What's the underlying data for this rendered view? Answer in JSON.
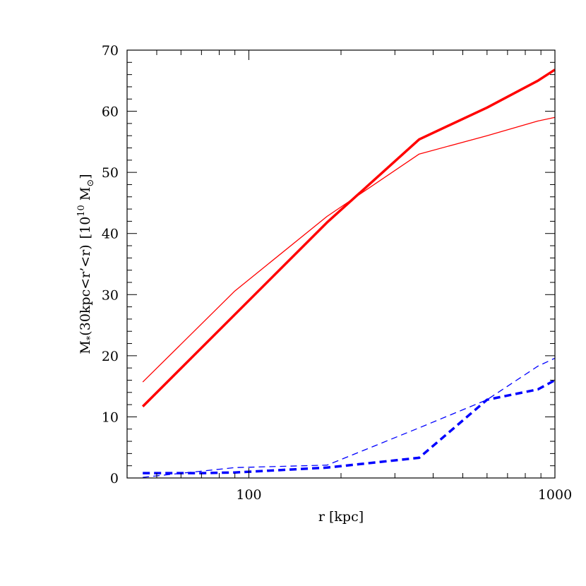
{
  "chart_data": {
    "type": "line",
    "title": "",
    "xlabel": "r [kpc]",
    "ylabel": {
      "base": "M",
      "sub": "*",
      "paren": "(30kpc<r’<r)",
      "unit_pre": "[10",
      "unit_sup": "10",
      "unit_post": " M",
      "unit_sub": "⊙",
      "unit_close": "]"
    },
    "xscale": "log",
    "xlim": [
      40,
      1000
    ],
    "ylim": [
      0,
      70
    ],
    "x_ticks": [
      100,
      1000
    ],
    "x_tick_labels": [
      "100",
      "1000"
    ],
    "y_ticks": [
      0,
      10,
      20,
      30,
      40,
      50,
      60,
      70
    ],
    "y_tick_labels": [
      "0",
      "10",
      "20",
      "30",
      "40",
      "50",
      "60",
      "70"
    ],
    "grid": false,
    "series": [
      {
        "color": "#ff0000",
        "style": "solid",
        "weight": "thick",
        "x": [
          45,
          180,
          360,
          600,
          880,
          1000
        ],
        "y": [
          11.7,
          41.8,
          55.4,
          60.6,
          65.0,
          66.8
        ]
      },
      {
        "color": "#ff0000",
        "style": "solid",
        "weight": "thin",
        "x": [
          45,
          90,
          180,
          360,
          600,
          880,
          1000
        ],
        "y": [
          15.7,
          30.6,
          42.8,
          53.0,
          56.0,
          58.4,
          59.0
        ]
      },
      {
        "color": "#0000ff",
        "style": "dashed",
        "weight": "thick",
        "x": [
          45,
          70,
          90,
          180,
          360,
          600,
          880,
          1000
        ],
        "y": [
          0.8,
          0.8,
          0.9,
          1.7,
          3.3,
          12.8,
          14.5,
          16.0
        ]
      },
      {
        "color": "#0000ff",
        "style": "dashed",
        "weight": "thin",
        "x": [
          45,
          90,
          180,
          360,
          600,
          880,
          1000
        ],
        "y": [
          0.1,
          1.7,
          2.1,
          8.2,
          12.8,
          18.3,
          19.6
        ]
      }
    ]
  }
}
